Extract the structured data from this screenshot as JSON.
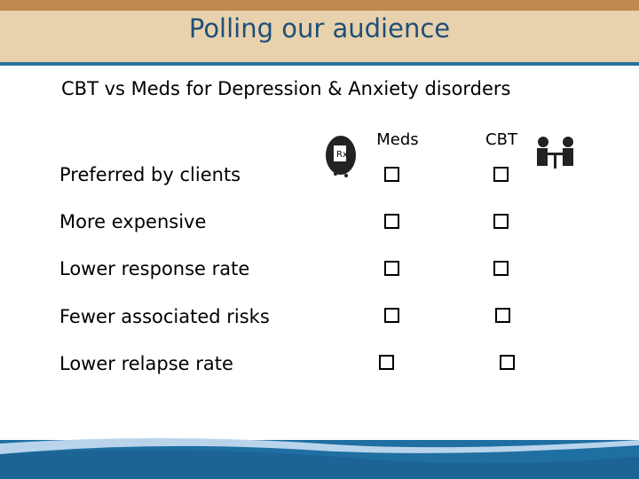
{
  "header": {
    "title": "Polling our audience"
  },
  "subtitle": "CBT vs Meds for Depression & Anxiety disorders",
  "table": {
    "columns": [
      "Meds",
      "CBT"
    ],
    "rows": [
      "Preferred by clients",
      "More expensive",
      "Lower response rate",
      "Fewer associated risks",
      "Lower relapse rate"
    ]
  }
}
